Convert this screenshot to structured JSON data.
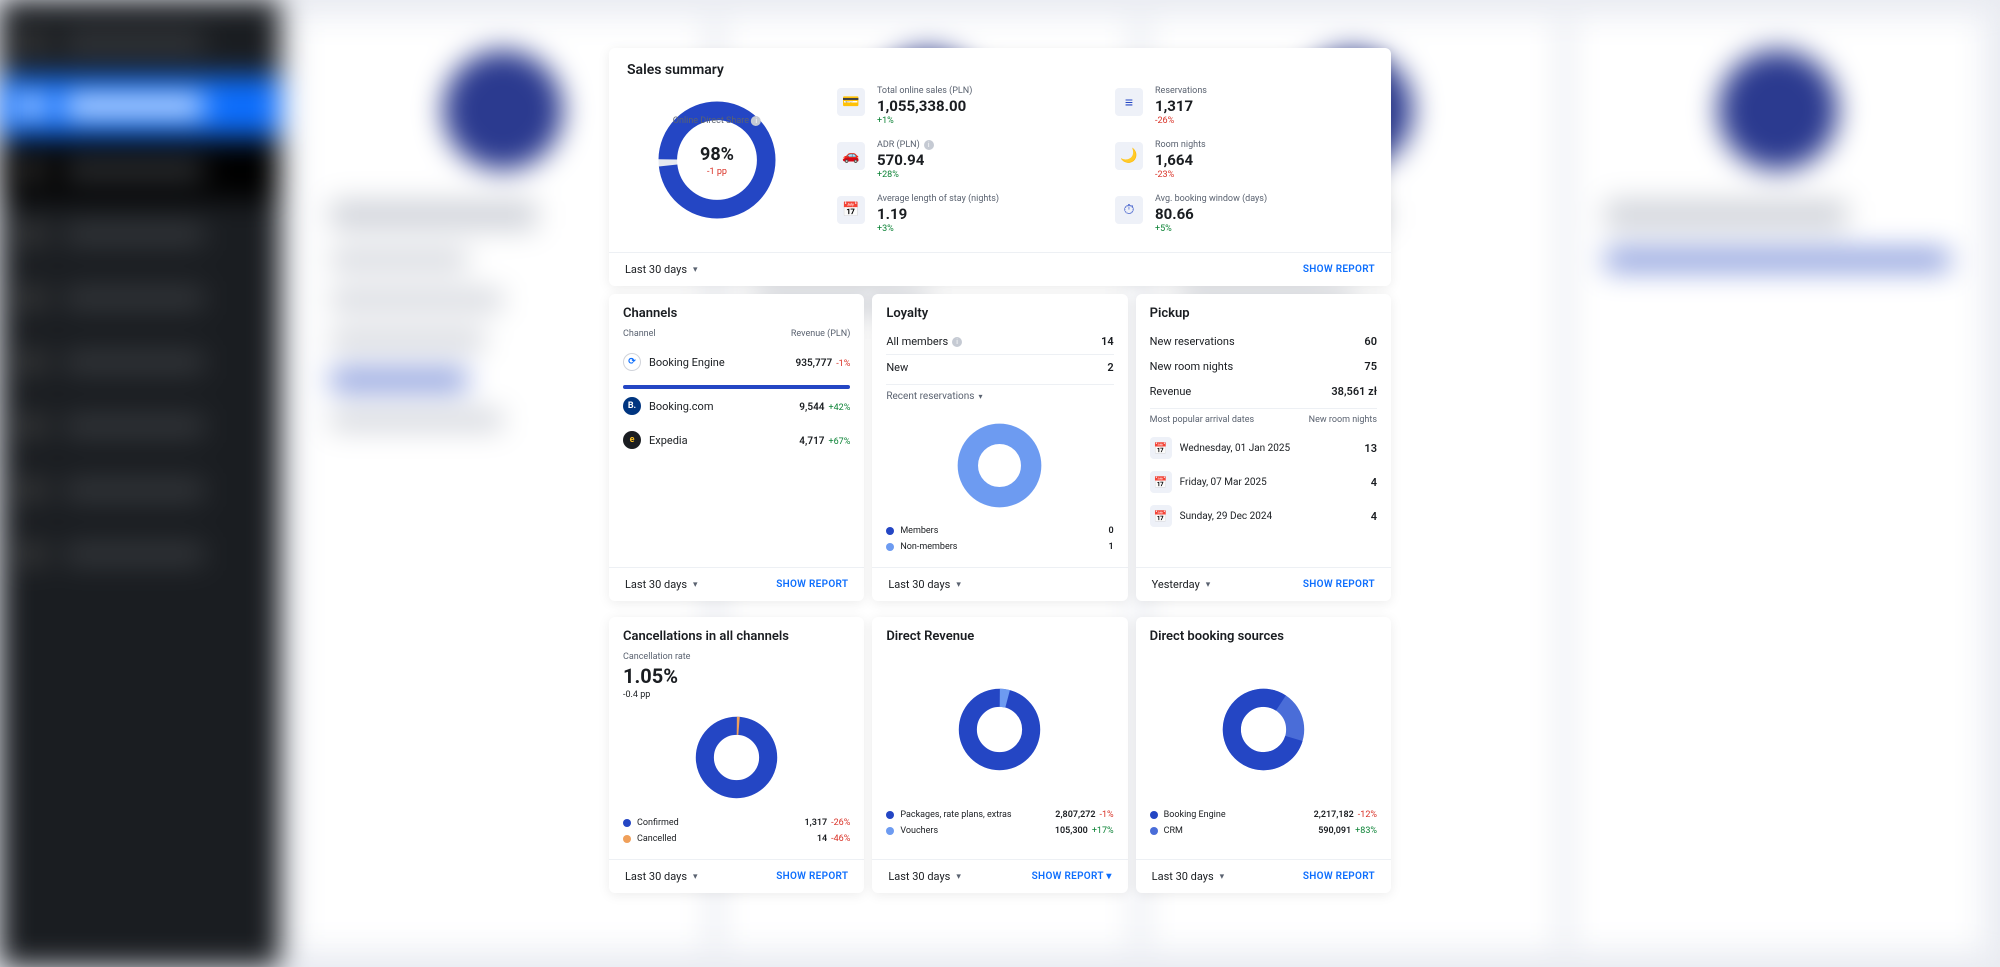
{
  "colors": {
    "primary": "#2446c4",
    "secondary": "#6d9bf1",
    "link": "#0d6efd",
    "positive": "#0b8235",
    "negative": "#d93025",
    "muted": "#5a6270",
    "iconbg": "#eef1f8",
    "border": "#edf0f4",
    "orange": "#f0a05a"
  },
  "summary": {
    "title": "Sales summary",
    "donut": {
      "label": "Online Direct Share",
      "value": "98%",
      "delta": "-1 pp",
      "pct": 98,
      "color": "#2446c4",
      "trackColor": "#e6e9f0"
    },
    "metrics": [
      {
        "icon": "💳",
        "label": "Total online sales (PLN)",
        "value": "1,055,338.00",
        "delta": "+1%",
        "deltaClass": "delta-pos"
      },
      {
        "icon": "≡",
        "label": "Reservations",
        "value": "1,317",
        "delta": "-26%",
        "deltaClass": "delta-neg"
      },
      {
        "icon": "🚗",
        "label": "ADR (PLN)",
        "value": "570.94",
        "delta": "+28%",
        "deltaClass": "delta-pos",
        "info": true
      },
      {
        "icon": "🌙",
        "label": "Room nights",
        "value": "1,664",
        "delta": "-23%",
        "deltaClass": "delta-neg"
      },
      {
        "icon": "📅",
        "label": "Average length of stay (nights)",
        "value": "1.19",
        "delta": "+3%",
        "deltaClass": "delta-pos"
      },
      {
        "icon": "⏱",
        "label": "Avg. booking window (days)",
        "value": "80.66",
        "delta": "+5%",
        "deltaClass": "delta-pos"
      }
    ],
    "period": "Last 30 days",
    "reportLabel": "SHOW REPORT"
  },
  "channels": {
    "title": "Channels",
    "head_channel": "Channel",
    "head_revenue": "Revenue (PLN)",
    "rows": [
      {
        "iconBg": "#ffffff",
        "iconBorder": "#d0d3da",
        "iconText": "⟳",
        "iconColor": "#0d6efd",
        "name": "Booking Engine",
        "value": "935,777",
        "delta": "-1%",
        "deltaClass": "delta-neg",
        "bar": true
      },
      {
        "iconBg": "#003580",
        "iconText": "B.",
        "iconColor": "#fff",
        "name": "Booking.com",
        "value": "9,544",
        "delta": "+42%",
        "deltaClass": "delta-pos"
      },
      {
        "iconBg": "#1a1d21",
        "iconText": "e",
        "iconColor": "#fbbf24",
        "name": "Expedia",
        "value": "4,717",
        "delta": "+67%",
        "deltaClass": "delta-pos"
      }
    ],
    "period": "Last 30 days",
    "reportLabel": "SHOW REPORT"
  },
  "loyalty": {
    "title": "Loyalty",
    "all_members_label": "All members",
    "all_members_value": "14",
    "new_label": "New",
    "new_value": "2",
    "sublink": "Recent reservations",
    "donut": {
      "pct": 1,
      "colorA": "#6d9bf1",
      "colorB": "#2446c4"
    },
    "legend": [
      {
        "color": "#2446c4",
        "label": "Members",
        "value": "0"
      },
      {
        "color": "#6d9bf1",
        "label": "Non-members",
        "value": "1"
      }
    ],
    "period": "Last 30 days"
  },
  "pickup": {
    "title": "Pickup",
    "rows": [
      {
        "label": "New reservations",
        "value": "60"
      },
      {
        "label": "New room nights",
        "value": "75"
      },
      {
        "label": "Revenue",
        "value": "38,561 zł"
      }
    ],
    "head_left": "Most popular arrival dates",
    "head_right": "New room nights",
    "dates": [
      {
        "date": "Wednesday, 01 Jan 2025",
        "value": "13"
      },
      {
        "date": "Friday, 07 Mar 2025",
        "value": "4"
      },
      {
        "date": "Sunday, 29 Dec 2024",
        "value": "4"
      }
    ],
    "period": "Yesterday",
    "reportLabel": "SHOW REPORT"
  },
  "cancellations": {
    "title": "Cancellations in all channels",
    "stat_label": "Cancellation rate",
    "stat_value": "1.05%",
    "stat_delta": "-0.4 pp",
    "donut": {
      "pct": 99,
      "colorA": "#2446c4",
      "colorB": "#f0a05a"
    },
    "legend": [
      {
        "color": "#2446c4",
        "label": "Confirmed",
        "value": "1,317",
        "delta": "-26%",
        "deltaClass": "delta-neg"
      },
      {
        "color": "#f0a05a",
        "label": "Cancelled",
        "value": "14",
        "delta": "-46%",
        "deltaClass": "delta-neg"
      }
    ],
    "period": "Last 30 days",
    "reportLabel": "SHOW REPORT"
  },
  "directRevenue": {
    "title": "Direct Revenue",
    "donut": {
      "segments": [
        {
          "pct": 96,
          "color": "#2446c4"
        },
        {
          "pct": 4,
          "color": "#6d9bf1"
        }
      ]
    },
    "legend": [
      {
        "color": "#2446c4",
        "label": "Packages, rate plans, extras",
        "value": "2,807,272",
        "delta": "-1%",
        "deltaClass": "delta-neg"
      },
      {
        "color": "#6d9bf1",
        "label": "Vouchers",
        "value": "105,300",
        "delta": "+17%",
        "deltaClass": "delta-pos"
      }
    ],
    "period": "Last 30 days",
    "reportLabel": "SHOW REPORT"
  },
  "directSources": {
    "title": "Direct booking sources",
    "donut": {
      "segments": [
        {
          "pct": 80,
          "color": "#2446c4"
        },
        {
          "pct": 20,
          "color": "#4a6dd8"
        }
      ]
    },
    "legend": [
      {
        "color": "#2446c4",
        "label": "Booking Engine",
        "value": "2,217,182",
        "delta": "-12%",
        "deltaClass": "delta-neg"
      },
      {
        "color": "#4a6dd8",
        "label": "CRM",
        "value": "590,091",
        "delta": "+83%",
        "deltaClass": "delta-pos"
      }
    ],
    "period": "Last 30 days",
    "reportLabel": "SHOW REPORT"
  }
}
